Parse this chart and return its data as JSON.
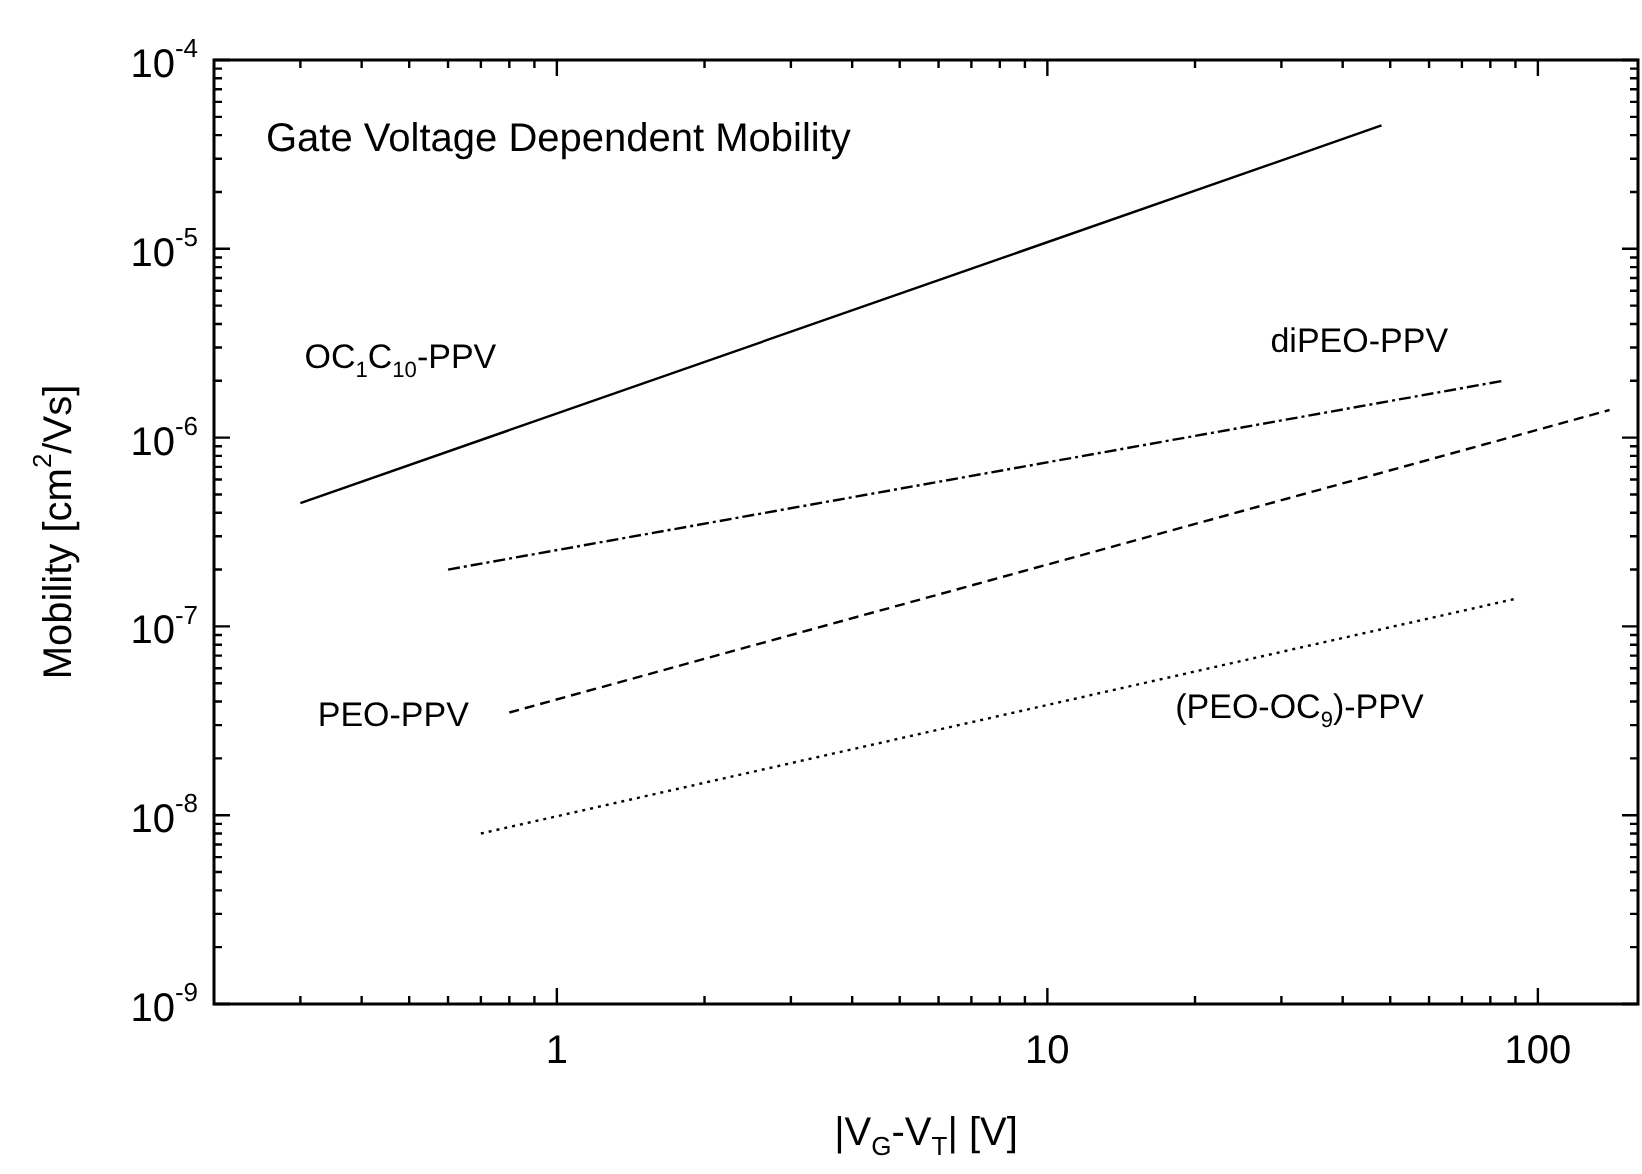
{
  "chart_data": {
    "type": "line",
    "title": "Gate Voltage Dependent Mobility",
    "xlabel": "|V$_{G}$-V$_{T}$| [V]",
    "ylabel": "Mobility [cm$^{2}$/Vs]",
    "log": "xy",
    "grid": false,
    "legend": false,
    "marker": "none",
    "xlim": [
      0.2,
      160
    ],
    "ylim": [
      1e-09,
      0.0001
    ],
    "xticks": [
      {
        "value": 0.3,
        "label": null
      },
      {
        "value": 0.4,
        "label": null
      },
      {
        "value": 0.5,
        "label": null
      },
      {
        "value": 0.6,
        "label": null
      },
      {
        "value": 0.7,
        "label": null
      },
      {
        "value": 0.8,
        "label": null
      },
      {
        "value": 0.9,
        "label": null
      },
      1,
      {
        "value": 2,
        "label": null
      },
      {
        "value": 3,
        "label": null
      },
      {
        "value": 4,
        "label": null
      },
      {
        "value": 5,
        "label": null
      },
      {
        "value": 6,
        "label": null
      },
      {
        "value": 7,
        "label": null
      },
      {
        "value": 8,
        "label": null
      },
      {
        "value": 9,
        "label": null
      },
      10,
      {
        "value": 20,
        "label": null
      },
      {
        "value": 30,
        "label": null
      },
      {
        "value": 40,
        "label": null
      },
      {
        "value": 50,
        "label": null
      },
      {
        "value": 60,
        "label": null
      },
      {
        "value": 70,
        "label": null
      },
      {
        "value": 80,
        "label": null
      },
      {
        "value": 90,
        "label": null
      },
      100
    ],
    "yticks": [
      {
        "value": 1e-09,
        "label": "10$^{-9}$"
      },
      {
        "value": 2e-09,
        "label": null
      },
      {
        "value": 3e-09,
        "label": null
      },
      {
        "value": 4e-09,
        "label": null
      },
      {
        "value": 5e-09,
        "label": null
      },
      {
        "value": 6e-09,
        "label": null
      },
      {
        "value": 7e-09,
        "label": null
      },
      {
        "value": 8e-09,
        "label": null
      },
      {
        "value": 9e-09,
        "label": null
      },
      {
        "value": 1e-08,
        "label": "10$^{-8}$"
      },
      {
        "value": 2e-08,
        "label": null
      },
      {
        "value": 3e-08,
        "label": null
      },
      {
        "value": 4e-08,
        "label": null
      },
      {
        "value": 5e-08,
        "label": null
      },
      {
        "value": 6e-08,
        "label": null
      },
      {
        "value": 7e-08,
        "label": null
      },
      {
        "value": 8e-08,
        "label": null
      },
      {
        "value": 9e-08,
        "label": null
      },
      {
        "value": 1e-07,
        "label": "10$^{-7}$"
      },
      {
        "value": 2e-07,
        "label": null
      },
      {
        "value": 3e-07,
        "label": null
      },
      {
        "value": 4e-07,
        "label": null
      },
      {
        "value": 5e-07,
        "label": null
      },
      {
        "value": 6e-07,
        "label": null
      },
      {
        "value": 7e-07,
        "label": null
      },
      {
        "value": 8e-07,
        "label": null
      },
      {
        "value": 9e-07,
        "label": null
      },
      {
        "value": 1e-06,
        "label": "10$^{-6}$"
      },
      {
        "value": 2e-06,
        "label": null
      },
      {
        "value": 3e-06,
        "label": null
      },
      {
        "value": 4e-06,
        "label": null
      },
      {
        "value": 5e-06,
        "label": null
      },
      {
        "value": 6e-06,
        "label": null
      },
      {
        "value": 7e-06,
        "label": null
      },
      {
        "value": 8e-06,
        "label": null
      },
      {
        "value": 9e-06,
        "label": null
      },
      {
        "value": 1e-05,
        "label": "10$^{-5}$"
      },
      {
        "value": 2e-05,
        "label": null
      },
      {
        "value": 3e-05,
        "label": null
      },
      {
        "value": 4e-05,
        "label": null
      },
      {
        "value": 5e-05,
        "label": null
      },
      {
        "value": 6e-05,
        "label": null
      },
      {
        "value": 7e-05,
        "label": null
      },
      {
        "value": 8e-05,
        "label": null
      },
      {
        "value": 9e-05,
        "label": null
      },
      {
        "value": 0.0001,
        "label": "10$^{-4}$"
      }
    ],
    "series": [
      {
        "name": "OC$_{1}$C$_{10}$-PPV",
        "color": "#000000",
        "line_style": "solid",
        "x": [
          0.3,
          48
        ],
        "values": [
          4.5e-07,
          4.5e-05
        ]
      },
      {
        "name": "diPEO-PPV",
        "color": "#000000",
        "line_style": "dashdot",
        "x": [
          0.6,
          85
        ],
        "values": [
          2e-07,
          2e-06
        ]
      },
      {
        "name": "PEO-PPV",
        "color": "#000000",
        "line_style": "dashed",
        "x": [
          0.8,
          140
        ],
        "values": [
          3.5e-08,
          1.4e-06
        ]
      },
      {
        "name": "(PEO-OC$_{9}$)-PPV",
        "color": "#000000",
        "line_style": "dotted",
        "x": [
          0.7,
          90
        ],
        "values": [
          8e-09,
          1.4e-07
        ]
      }
    ]
  }
}
